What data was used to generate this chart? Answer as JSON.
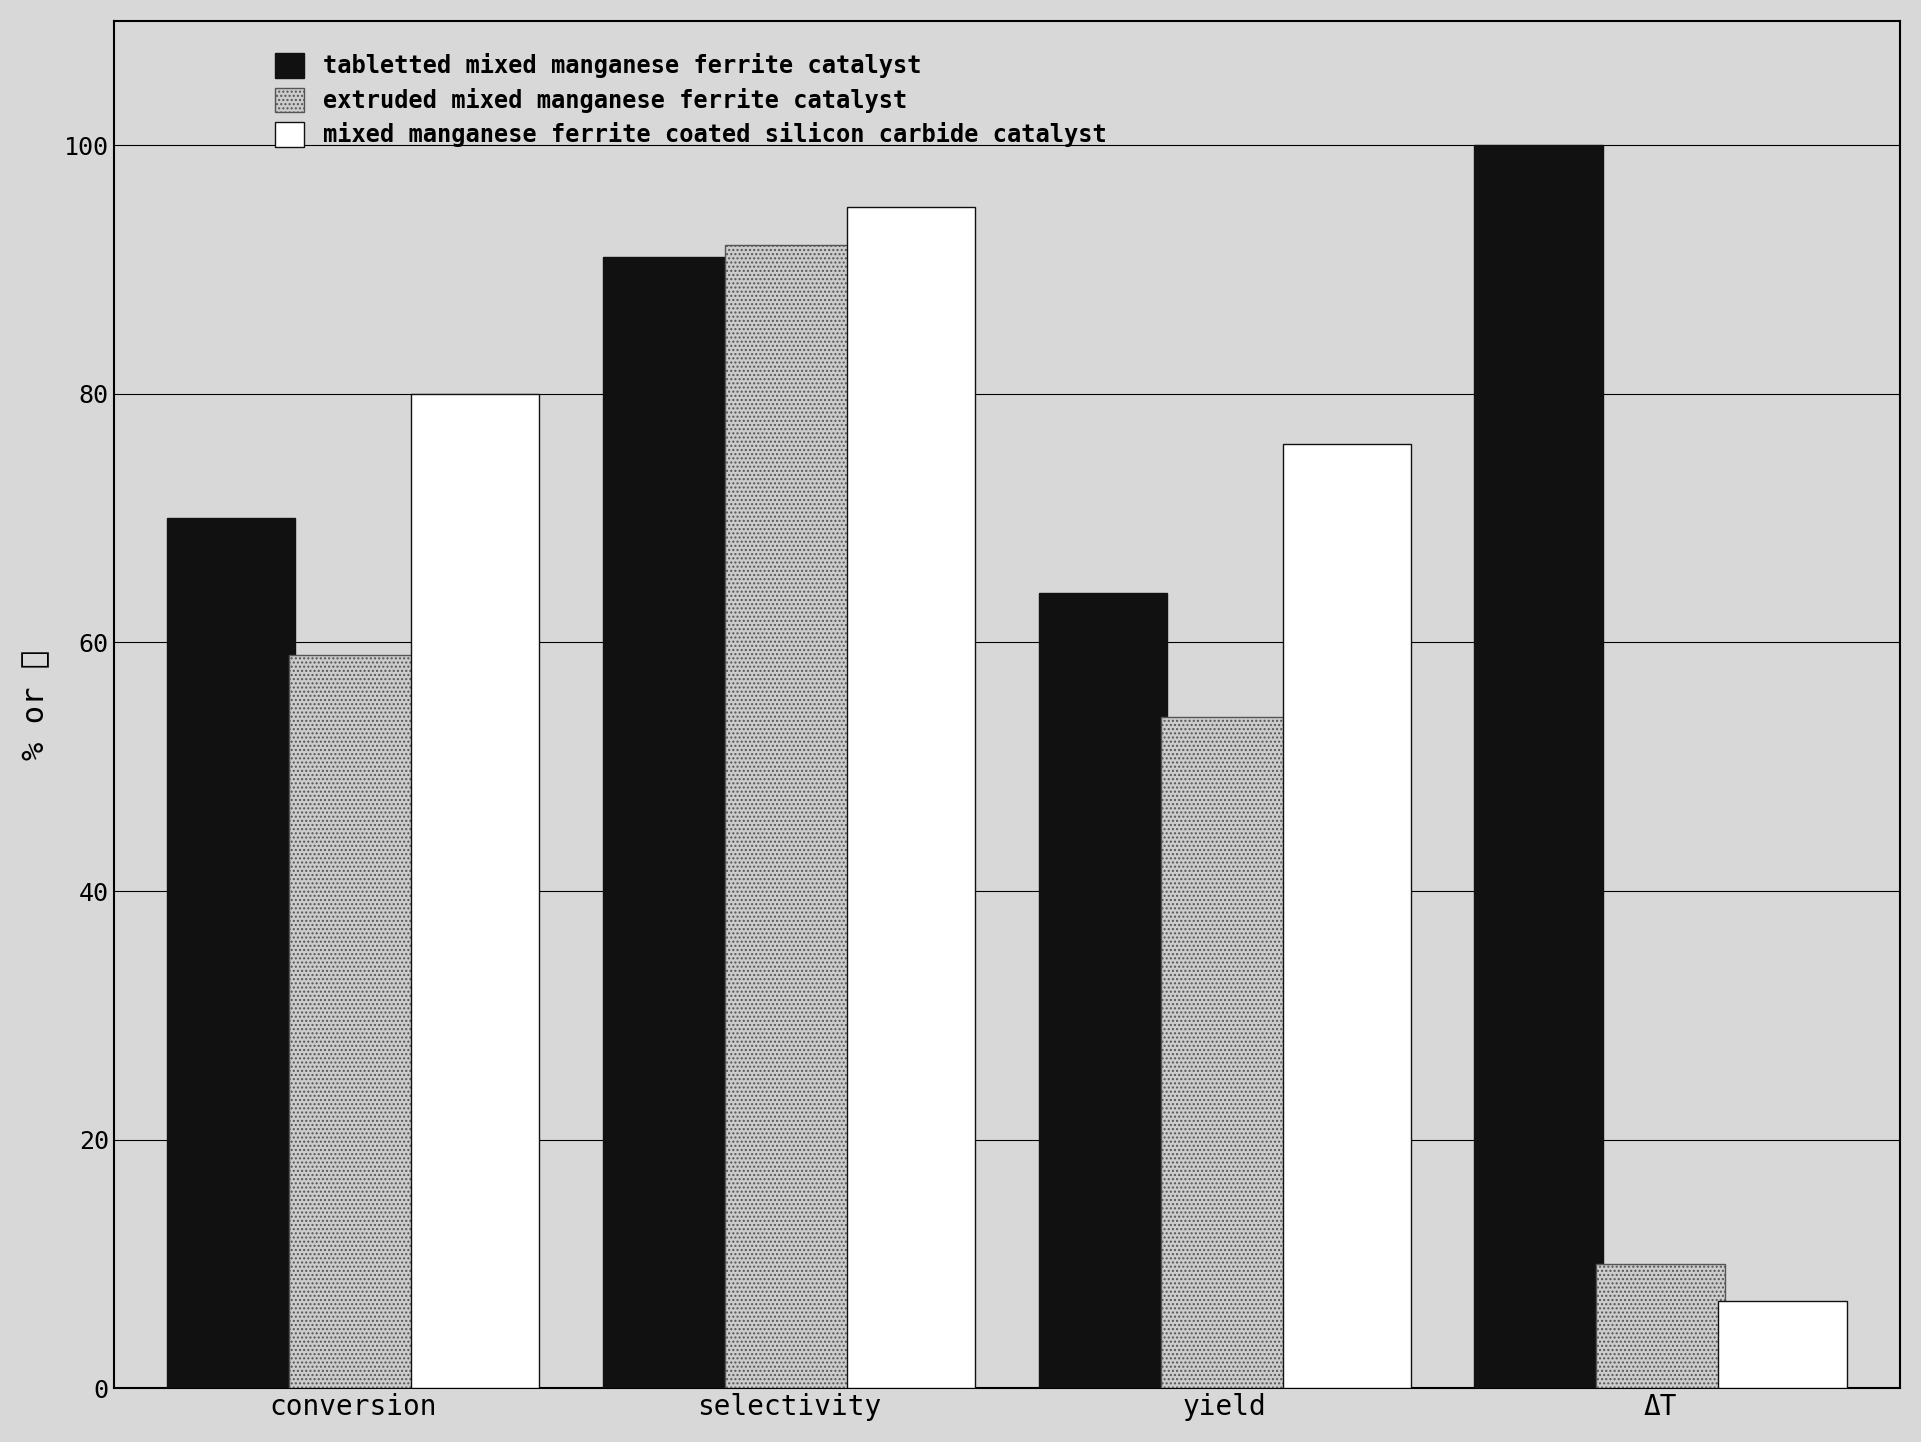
{
  "categories": [
    "conversion",
    "selectivity",
    "yield",
    "ΔT"
  ],
  "series": [
    {
      "label": "tabletted mixed manganese ferrite catalyst",
      "values": [
        70,
        91,
        64,
        100
      ],
      "color": "#111111",
      "hatch": null,
      "edgecolor": "#111111"
    },
    {
      "label": "extruded mixed manganese ferrite catalyst",
      "values": [
        59,
        92,
        54,
        10
      ],
      "color": "#cccccc",
      "hatch": "....",
      "edgecolor": "#555555"
    },
    {
      "label": "mixed manganese ferrite coated silicon carbide catalyst",
      "values": [
        80,
        95,
        76,
        7
      ],
      "color": "#ffffff",
      "hatch": null,
      "edgecolor": "#111111"
    }
  ],
  "ylabel": "% or ℃",
  "ylim": [
    0,
    110
  ],
  "yticks": [
    0,
    20,
    40,
    60,
    80,
    100
  ],
  "background_color": "#d8d8d8",
  "plot_background": "#d8d8d8",
  "bar_width": 0.28,
  "legend_fontsize": 17,
  "axis_fontsize": 20,
  "tick_fontsize": 18,
  "ylabel_fontsize": 22
}
